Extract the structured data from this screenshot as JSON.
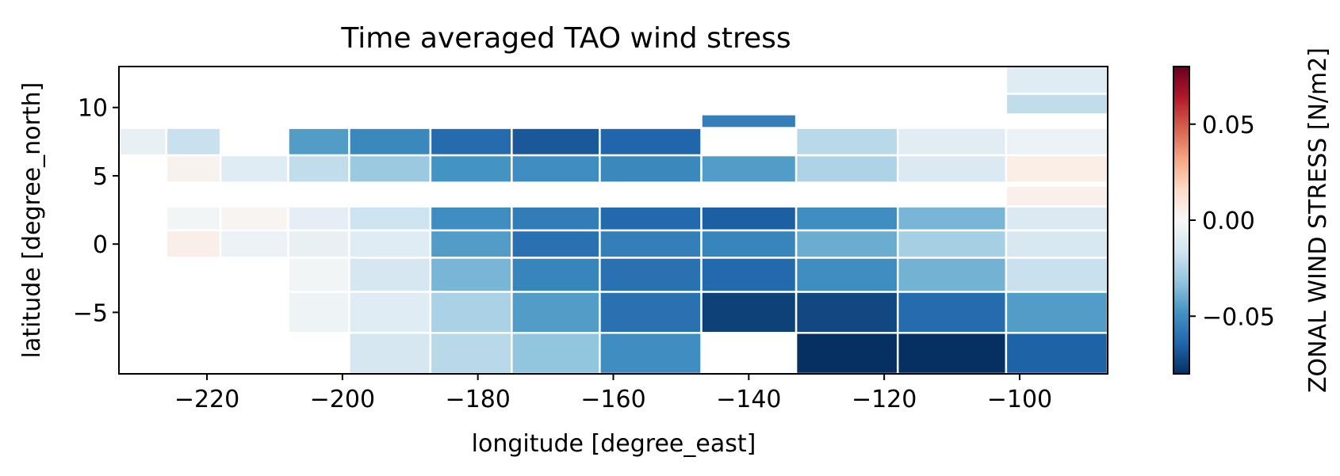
{
  "chart_data": {
    "type": "heatmap",
    "title": "Time averaged TAO wind stress",
    "xlabel": "longitude [degree_east]",
    "ylabel": "latitude [degree_north]",
    "colorbar_label": "ZONAL WIND STRESS [N/m2]",
    "colormap": "RdBu_r",
    "vmin": -0.08,
    "vmax": 0.08,
    "xlim": [
      -233,
      -87
    ],
    "ylim": [
      -9.5,
      13
    ],
    "xticks": [
      -220,
      -200,
      -180,
      -160,
      -140,
      -120,
      -100
    ],
    "xtick_labels": [
      "−220",
      "−200",
      "−180",
      "−160",
      "−140",
      "−120",
      "−100"
    ],
    "yticks": [
      -5,
      0,
      5,
      10
    ],
    "ytick_labels": [
      "−5",
      "0",
      "5",
      "10"
    ],
    "colorbar_ticks": [
      -0.05,
      0.0,
      0.05
    ],
    "colorbar_tick_labels": [
      "−0.05",
      "0.00",
      "0.05"
    ],
    "cells": [
      {
        "x0": -102,
        "x1": -87,
        "y0": 11,
        "y1": 13,
        "value": -0.01
      },
      {
        "x0": -102,
        "x1": -87,
        "y0": 9.5,
        "y1": 11,
        "value": -0.02
      },
      {
        "x0": -147,
        "x1": -133,
        "y0": 8.5,
        "y1": 9.5,
        "value": -0.055
      },
      {
        "x0": -233,
        "x1": -226,
        "y0": 6.5,
        "y1": 8.5,
        "value": -0.006
      },
      {
        "x0": -226,
        "x1": -218,
        "y0": 6.5,
        "y1": 8.5,
        "value": -0.018
      },
      {
        "x0": -208,
        "x1": -199,
        "y0": 6.5,
        "y1": 8.5,
        "value": -0.045
      },
      {
        "x0": -199,
        "x1": -187,
        "y0": 6.5,
        "y1": 8.5,
        "value": -0.052
      },
      {
        "x0": -187,
        "x1": -175,
        "y0": 6.5,
        "y1": 8.5,
        "value": -0.062
      },
      {
        "x0": -175,
        "x1": -162,
        "y0": 6.5,
        "y1": 8.5,
        "value": -0.068
      },
      {
        "x0": -162,
        "x1": -147,
        "y0": 6.5,
        "y1": 8.5,
        "value": -0.064
      },
      {
        "x0": -133,
        "x1": -118,
        "y0": 6.5,
        "y1": 8.5,
        "value": -0.022
      },
      {
        "x0": -118,
        "x1": -102,
        "y0": 6.5,
        "y1": 8.5,
        "value": -0.009
      },
      {
        "x0": -102,
        "x1": -87,
        "y0": 6.5,
        "y1": 8.5,
        "value": -0.005
      },
      {
        "x0": -226,
        "x1": -218,
        "y0": 4.5,
        "y1": 6.5,
        "value": 0.003
      },
      {
        "x0": -218,
        "x1": -208,
        "y0": 4.5,
        "y1": 6.5,
        "value": -0.01
      },
      {
        "x0": -208,
        "x1": -199,
        "y0": 4.5,
        "y1": 6.5,
        "value": -0.02
      },
      {
        "x0": -199,
        "x1": -187,
        "y0": 4.5,
        "y1": 6.5,
        "value": -0.03
      },
      {
        "x0": -187,
        "x1": -175,
        "y0": 4.5,
        "y1": 6.5,
        "value": -0.048
      },
      {
        "x0": -175,
        "x1": -162,
        "y0": 4.5,
        "y1": 6.5,
        "value": -0.05
      },
      {
        "x0": -162,
        "x1": -147,
        "y0": 4.5,
        "y1": 6.5,
        "value": -0.052
      },
      {
        "x0": -147,
        "x1": -133,
        "y0": 4.5,
        "y1": 6.5,
        "value": -0.045
      },
      {
        "x0": -133,
        "x1": -118,
        "y0": 4.5,
        "y1": 6.5,
        "value": -0.025
      },
      {
        "x0": -118,
        "x1": -102,
        "y0": 4.5,
        "y1": 6.5,
        "value": -0.012
      },
      {
        "x0": -102,
        "x1": -87,
        "y0": 4.5,
        "y1": 6.5,
        "value": 0.006
      },
      {
        "x0": -102,
        "x1": -87,
        "y0": 2.75,
        "y1": 4.25,
        "value": 0.004
      },
      {
        "x0": -226,
        "x1": -218,
        "y0": 1,
        "y1": 2.75,
        "value": -0.002
      },
      {
        "x0": -218,
        "x1": -208,
        "y0": 1,
        "y1": 2.75,
        "value": 0.002
      },
      {
        "x0": -208,
        "x1": -199,
        "y0": 1,
        "y1": 2.75,
        "value": -0.008
      },
      {
        "x0": -199,
        "x1": -187,
        "y0": 1,
        "y1": 2.75,
        "value": -0.017
      },
      {
        "x0": -187,
        "x1": -175,
        "y0": 1,
        "y1": 2.75,
        "value": -0.05
      },
      {
        "x0": -175,
        "x1": -162,
        "y0": 1,
        "y1": 2.75,
        "value": -0.056
      },
      {
        "x0": -162,
        "x1": -147,
        "y0": 1,
        "y1": 2.75,
        "value": -0.063
      },
      {
        "x0": -147,
        "x1": -133,
        "y0": 1,
        "y1": 2.75,
        "value": -0.066
      },
      {
        "x0": -133,
        "x1": -118,
        "y0": 1,
        "y1": 2.75,
        "value": -0.05
      },
      {
        "x0": -118,
        "x1": -102,
        "y0": 1,
        "y1": 2.75,
        "value": -0.037
      },
      {
        "x0": -102,
        "x1": -87,
        "y0": 1,
        "y1": 2.75,
        "value": -0.012
      },
      {
        "x0": -226,
        "x1": -218,
        "y0": -1,
        "y1": 1,
        "value": 0.005
      },
      {
        "x0": -218,
        "x1": -208,
        "y0": -1,
        "y1": 1,
        "value": -0.005
      },
      {
        "x0": -208,
        "x1": -199,
        "y0": -1,
        "y1": 1,
        "value": -0.006
      },
      {
        "x0": -199,
        "x1": -187,
        "y0": -1,
        "y1": 1,
        "value": -0.01
      },
      {
        "x0": -187,
        "x1": -175,
        "y0": -1,
        "y1": 1,
        "value": -0.045
      },
      {
        "x0": -175,
        "x1": -162,
        "y0": -1,
        "y1": 1,
        "value": -0.06
      },
      {
        "x0": -162,
        "x1": -147,
        "y0": -1,
        "y1": 1,
        "value": -0.055
      },
      {
        "x0": -147,
        "x1": -133,
        "y0": -1,
        "y1": 1,
        "value": -0.053
      },
      {
        "x0": -133,
        "x1": -118,
        "y0": -1,
        "y1": 1,
        "value": -0.04
      },
      {
        "x0": -118,
        "x1": -102,
        "y0": -1,
        "y1": 1,
        "value": -0.027
      },
      {
        "x0": -102,
        "x1": -87,
        "y0": -1,
        "y1": 1,
        "value": -0.013
      },
      {
        "x0": -208,
        "x1": -199,
        "y0": -3.5,
        "y1": -1,
        "value": -0.002
      },
      {
        "x0": -199,
        "x1": -187,
        "y0": -3.5,
        "y1": -1,
        "value": -0.014
      },
      {
        "x0": -187,
        "x1": -175,
        "y0": -3.5,
        "y1": -1,
        "value": -0.037
      },
      {
        "x0": -175,
        "x1": -162,
        "y0": -3.5,
        "y1": -1,
        "value": -0.053
      },
      {
        "x0": -162,
        "x1": -147,
        "y0": -3.5,
        "y1": -1,
        "value": -0.06
      },
      {
        "x0": -147,
        "x1": -133,
        "y0": -3.5,
        "y1": -1,
        "value": -0.063
      },
      {
        "x0": -133,
        "x1": -118,
        "y0": -3.5,
        "y1": -1,
        "value": -0.05
      },
      {
        "x0": -118,
        "x1": -102,
        "y0": -3.5,
        "y1": -1,
        "value": -0.038
      },
      {
        "x0": -102,
        "x1": -87,
        "y0": -3.5,
        "y1": -1,
        "value": -0.018
      },
      {
        "x0": -208,
        "x1": -199,
        "y0": -6.5,
        "y1": -3.5,
        "value": -0.004
      },
      {
        "x0": -199,
        "x1": -187,
        "y0": -6.5,
        "y1": -3.5,
        "value": -0.01
      },
      {
        "x0": -187,
        "x1": -175,
        "y0": -6.5,
        "y1": -3.5,
        "value": -0.026
      },
      {
        "x0": -175,
        "x1": -162,
        "y0": -6.5,
        "y1": -3.5,
        "value": -0.045
      },
      {
        "x0": -162,
        "x1": -147,
        "y0": -6.5,
        "y1": -3.5,
        "value": -0.06
      },
      {
        "x0": -147,
        "x1": -133,
        "y0": -6.5,
        "y1": -3.5,
        "value": -0.075
      },
      {
        "x0": -133,
        "x1": -118,
        "y0": -6.5,
        "y1": -3.5,
        "value": -0.073
      },
      {
        "x0": -118,
        "x1": -102,
        "y0": -6.5,
        "y1": -3.5,
        "value": -0.062
      },
      {
        "x0": -102,
        "x1": -87,
        "y0": -6.5,
        "y1": -3.5,
        "value": -0.045
      },
      {
        "x0": -199,
        "x1": -187,
        "y0": -9.5,
        "y1": -6.5,
        "value": -0.014
      },
      {
        "x0": -187,
        "x1": -175,
        "y0": -9.5,
        "y1": -6.5,
        "value": -0.022
      },
      {
        "x0": -175,
        "x1": -162,
        "y0": -9.5,
        "y1": -6.5,
        "value": -0.032
      },
      {
        "x0": -162,
        "x1": -147,
        "y0": -9.5,
        "y1": -6.5,
        "value": -0.05
      },
      {
        "x0": -133,
        "x1": -118,
        "y0": -9.5,
        "y1": -6.5,
        "value": -0.08
      },
      {
        "x0": -118,
        "x1": -102,
        "y0": -9.5,
        "y1": -6.5,
        "value": -0.08
      },
      {
        "x0": -102,
        "x1": -87,
        "y0": -9.5,
        "y1": -6.5,
        "value": -0.065
      }
    ]
  }
}
